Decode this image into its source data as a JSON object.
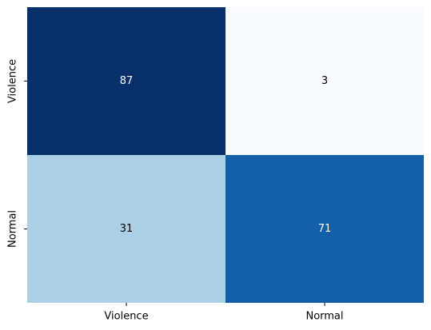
{
  "chart_data": {
    "type": "heatmap",
    "rows": [
      "Violence",
      "Normal"
    ],
    "columns": [
      "Violence",
      "Normal"
    ],
    "values": [
      [
        87,
        3
      ],
      [
        31,
        71
      ]
    ],
    "colormap": "Blues",
    "vmin": 3,
    "vmax": 87,
    "colorbar": false,
    "title": "",
    "xlabel": "",
    "ylabel": "",
    "cell_colors": [
      [
        "#08306b",
        "#f7fbff"
      ],
      [
        "#abd0e6",
        "#1460a8"
      ]
    ],
    "text_colors": [
      [
        "#ffffff",
        "#000000"
      ],
      [
        "#000000",
        "#ffffff"
      ]
    ]
  }
}
